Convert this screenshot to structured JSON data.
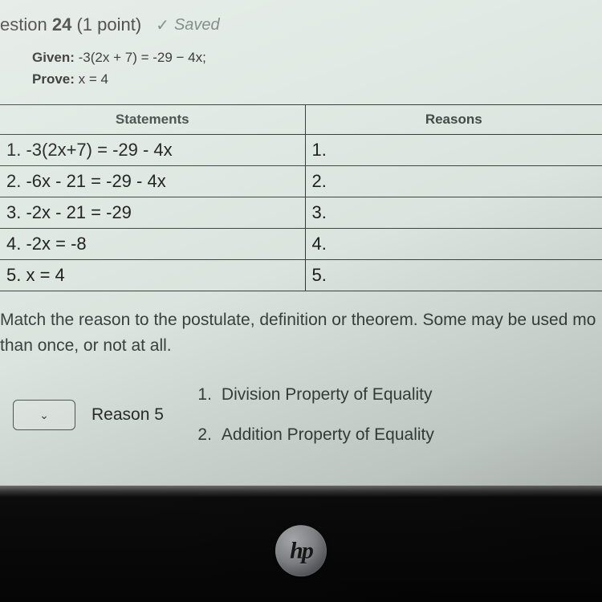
{
  "header": {
    "question_word": "estion",
    "question_number": "24",
    "points": "(1 point)",
    "saved_label": "Saved",
    "check_glyph": "✓"
  },
  "problem": {
    "given_label": "Given:",
    "given_expr": "-3(2x + 7) = -29 − 4x;",
    "prove_label": "Prove:",
    "prove_expr": "x = 4"
  },
  "table": {
    "col_statements": "Statements",
    "col_reasons": "Reasons",
    "rows": [
      {
        "stmt": "1. -3(2x+7) = -29 - 4x",
        "rsn": "1."
      },
      {
        "stmt": "2. -6x - 21 = -29 - 4x",
        "rsn": "2."
      },
      {
        "stmt": "3. -2x - 21 = -29",
        "rsn": "3."
      },
      {
        "stmt": "4. -2x = -8",
        "rsn": "4."
      },
      {
        "stmt": "5. x = 4",
        "rsn": "5."
      }
    ]
  },
  "instructions_text": "Match the reason to the postulate, definition or theorem. Some may be used mo than once, or not at all.",
  "match": {
    "dropdown_glyph": "⌄",
    "reason_label": "Reason 5",
    "options": [
      {
        "n": "1.",
        "text": "Division Property of Equality"
      },
      {
        "n": "2.",
        "text": "Addition Property of Equality"
      }
    ]
  },
  "logo_text": "hp",
  "colors": {
    "page_bg": "#dfe8e2",
    "text_primary": "#1a1a1a",
    "text_muted": "#3a423d",
    "border": "#2f3a34"
  }
}
